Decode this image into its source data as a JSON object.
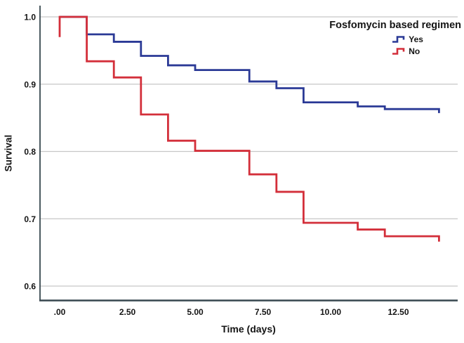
{
  "chart_data": {
    "type": "line",
    "subtype": "kaplan-meier-step",
    "title": "",
    "xlabel": "Time (days)",
    "ylabel": "Survival",
    "xlim": [
      -0.75,
      14.7
    ],
    "ylim": [
      0.58,
      1.02
    ],
    "grid": "horizontal-only",
    "grid_color": "#c7c7c7",
    "axis_color": "#37474f",
    "tick_label_color": "#141414",
    "x_ticks": [
      {
        "t": 0,
        "label": ".00"
      },
      {
        "t": 2.5,
        "label": "2.50"
      },
      {
        "t": 5,
        "label": "5.00"
      },
      {
        "t": 7.5,
        "label": "7.50"
      },
      {
        "t": 10,
        "label": "10.00"
      },
      {
        "t": 12.5,
        "label": "12.50"
      }
    ],
    "y_ticks": [
      {
        "v": 1.0,
        "label": "1.0"
      },
      {
        "v": 0.9,
        "label": "0.9"
      },
      {
        "v": 0.8,
        "label": "0.8"
      },
      {
        "v": 0.7,
        "label": "0.7"
      },
      {
        "v": 0.6,
        "label": "0.6"
      }
    ],
    "legend": {
      "title": "Fosfomycin based regimen",
      "position": "top-right"
    },
    "series": [
      {
        "name": "Yes",
        "color": "#2b3a96",
        "steps": [
          {
            "t": 0,
            "s": 1.0
          },
          {
            "t": 1,
            "s": 0.974
          },
          {
            "t": 2,
            "s": 0.963
          },
          {
            "t": 3,
            "s": 0.942
          },
          {
            "t": 4,
            "s": 0.928
          },
          {
            "t": 5,
            "s": 0.921
          },
          {
            "t": 7,
            "s": 0.904
          },
          {
            "t": 8,
            "s": 0.894
          },
          {
            "t": 9,
            "s": 0.873
          },
          {
            "t": 11,
            "s": 0.867
          },
          {
            "t": 12,
            "s": 0.863
          }
        ],
        "end": {
          "t": 14,
          "s": 0.857
        }
      },
      {
        "name": "No",
        "color": "#d32f3a",
        "start_tick": {
          "t": 0,
          "from": 1.0,
          "to": 0.97
        },
        "steps": [
          {
            "t": 0,
            "s": 1.0
          },
          {
            "t": 1,
            "s": 0.934
          },
          {
            "t": 2,
            "s": 0.91
          },
          {
            "t": 3,
            "s": 0.855
          },
          {
            "t": 4,
            "s": 0.816
          },
          {
            "t": 5,
            "s": 0.801
          },
          {
            "t": 7,
            "s": 0.766
          },
          {
            "t": 8,
            "s": 0.74
          },
          {
            "t": 9,
            "s": 0.694
          },
          {
            "t": 11,
            "s": 0.684
          },
          {
            "t": 12,
            "s": 0.674
          }
        ],
        "end": {
          "t": 14,
          "s": 0.666
        }
      }
    ]
  }
}
